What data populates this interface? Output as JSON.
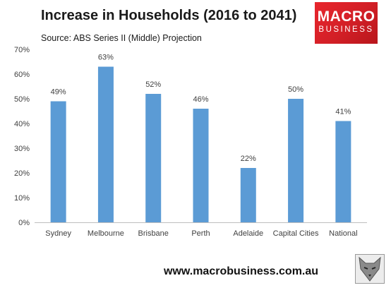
{
  "header": {
    "title": "Increase in Households (2016 to 2041)",
    "subtitle": "Source: ABS Series II (Middle) Projection"
  },
  "logo": {
    "line1": "MACRO",
    "line2": "BUSINESS"
  },
  "footer": {
    "url": "www.macrobusiness.com.au"
  },
  "colors": {
    "bar": "#5b9bd5",
    "axis": "#bfbfbf",
    "brand": "#e32229"
  },
  "chart_data": {
    "type": "bar",
    "title": "Increase in Households (2016 to 2041)",
    "subtitle": "Source: ABS Series II (Middle) Projection",
    "categories": [
      "Sydney",
      "Melbourne",
      "Brisbane",
      "Perth",
      "Adelaide",
      "Capital Cities",
      "National"
    ],
    "values": [
      49,
      63,
      52,
      46,
      22,
      50,
      41
    ],
    "data_labels": [
      "49%",
      "63%",
      "52%",
      "46%",
      "22%",
      "50%",
      "41%"
    ],
    "ylim": [
      0,
      70
    ],
    "yticks": [
      0,
      10,
      20,
      30,
      40,
      50,
      60,
      70
    ],
    "ytick_labels": [
      "0%",
      "10%",
      "20%",
      "30%",
      "40%",
      "50%",
      "60%",
      "70%"
    ],
    "xlabel": "",
    "ylabel": "",
    "grid": false,
    "legend": "none"
  }
}
